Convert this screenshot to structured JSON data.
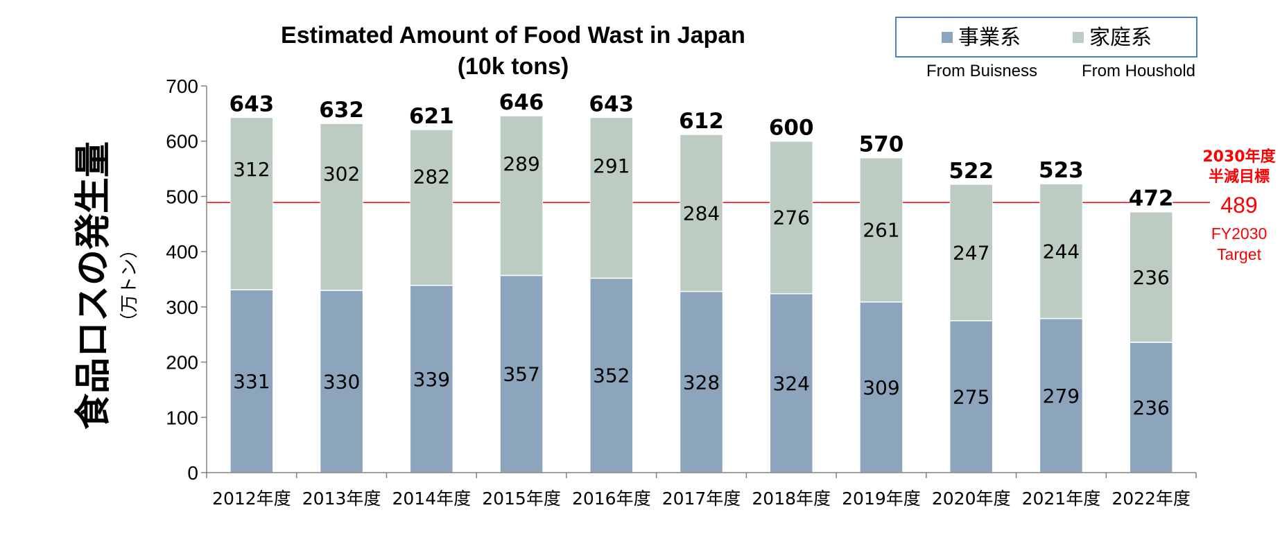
{
  "chart_data": {
    "type": "bar",
    "stacked": true,
    "title": [
      "Estimated Amount of Food Wast in Japan",
      "(10k tons)"
    ],
    "ylabel": "食品ロスの発生量",
    "yunit": "（万トン）",
    "ylim": [
      0,
      700
    ],
    "yticks": [
      0,
      100,
      200,
      300,
      400,
      500,
      600,
      700
    ],
    "grid": false,
    "legend_position": "top-right",
    "categories": [
      "2012年度",
      "2013年度",
      "2014年度",
      "2015年度",
      "2016年度",
      "2017年度",
      "2018年度",
      "2019年度",
      "2020年度",
      "2021年度",
      "2022年度"
    ],
    "series": [
      {
        "name": "事業系",
        "caption": "From Buisness",
        "color": "#8da4bd",
        "values": [
          331,
          330,
          339,
          357,
          352,
          328,
          324,
          309,
          275,
          279,
          236
        ]
      },
      {
        "name": "家庭系",
        "caption": "From Houshold",
        "color": "#bcccc3",
        "values": [
          312,
          302,
          282,
          289,
          291,
          284,
          276,
          261,
          247,
          244,
          236
        ]
      }
    ],
    "totals": [
      643,
      632,
      621,
      646,
      643,
      612,
      600,
      570,
      522,
      523,
      472
    ],
    "target": {
      "value": 489,
      "label_jp": [
        "2030年度",
        "半減目標"
      ],
      "label_en": [
        "FY2030",
        "Target"
      ],
      "color": "#ff0000"
    }
  }
}
